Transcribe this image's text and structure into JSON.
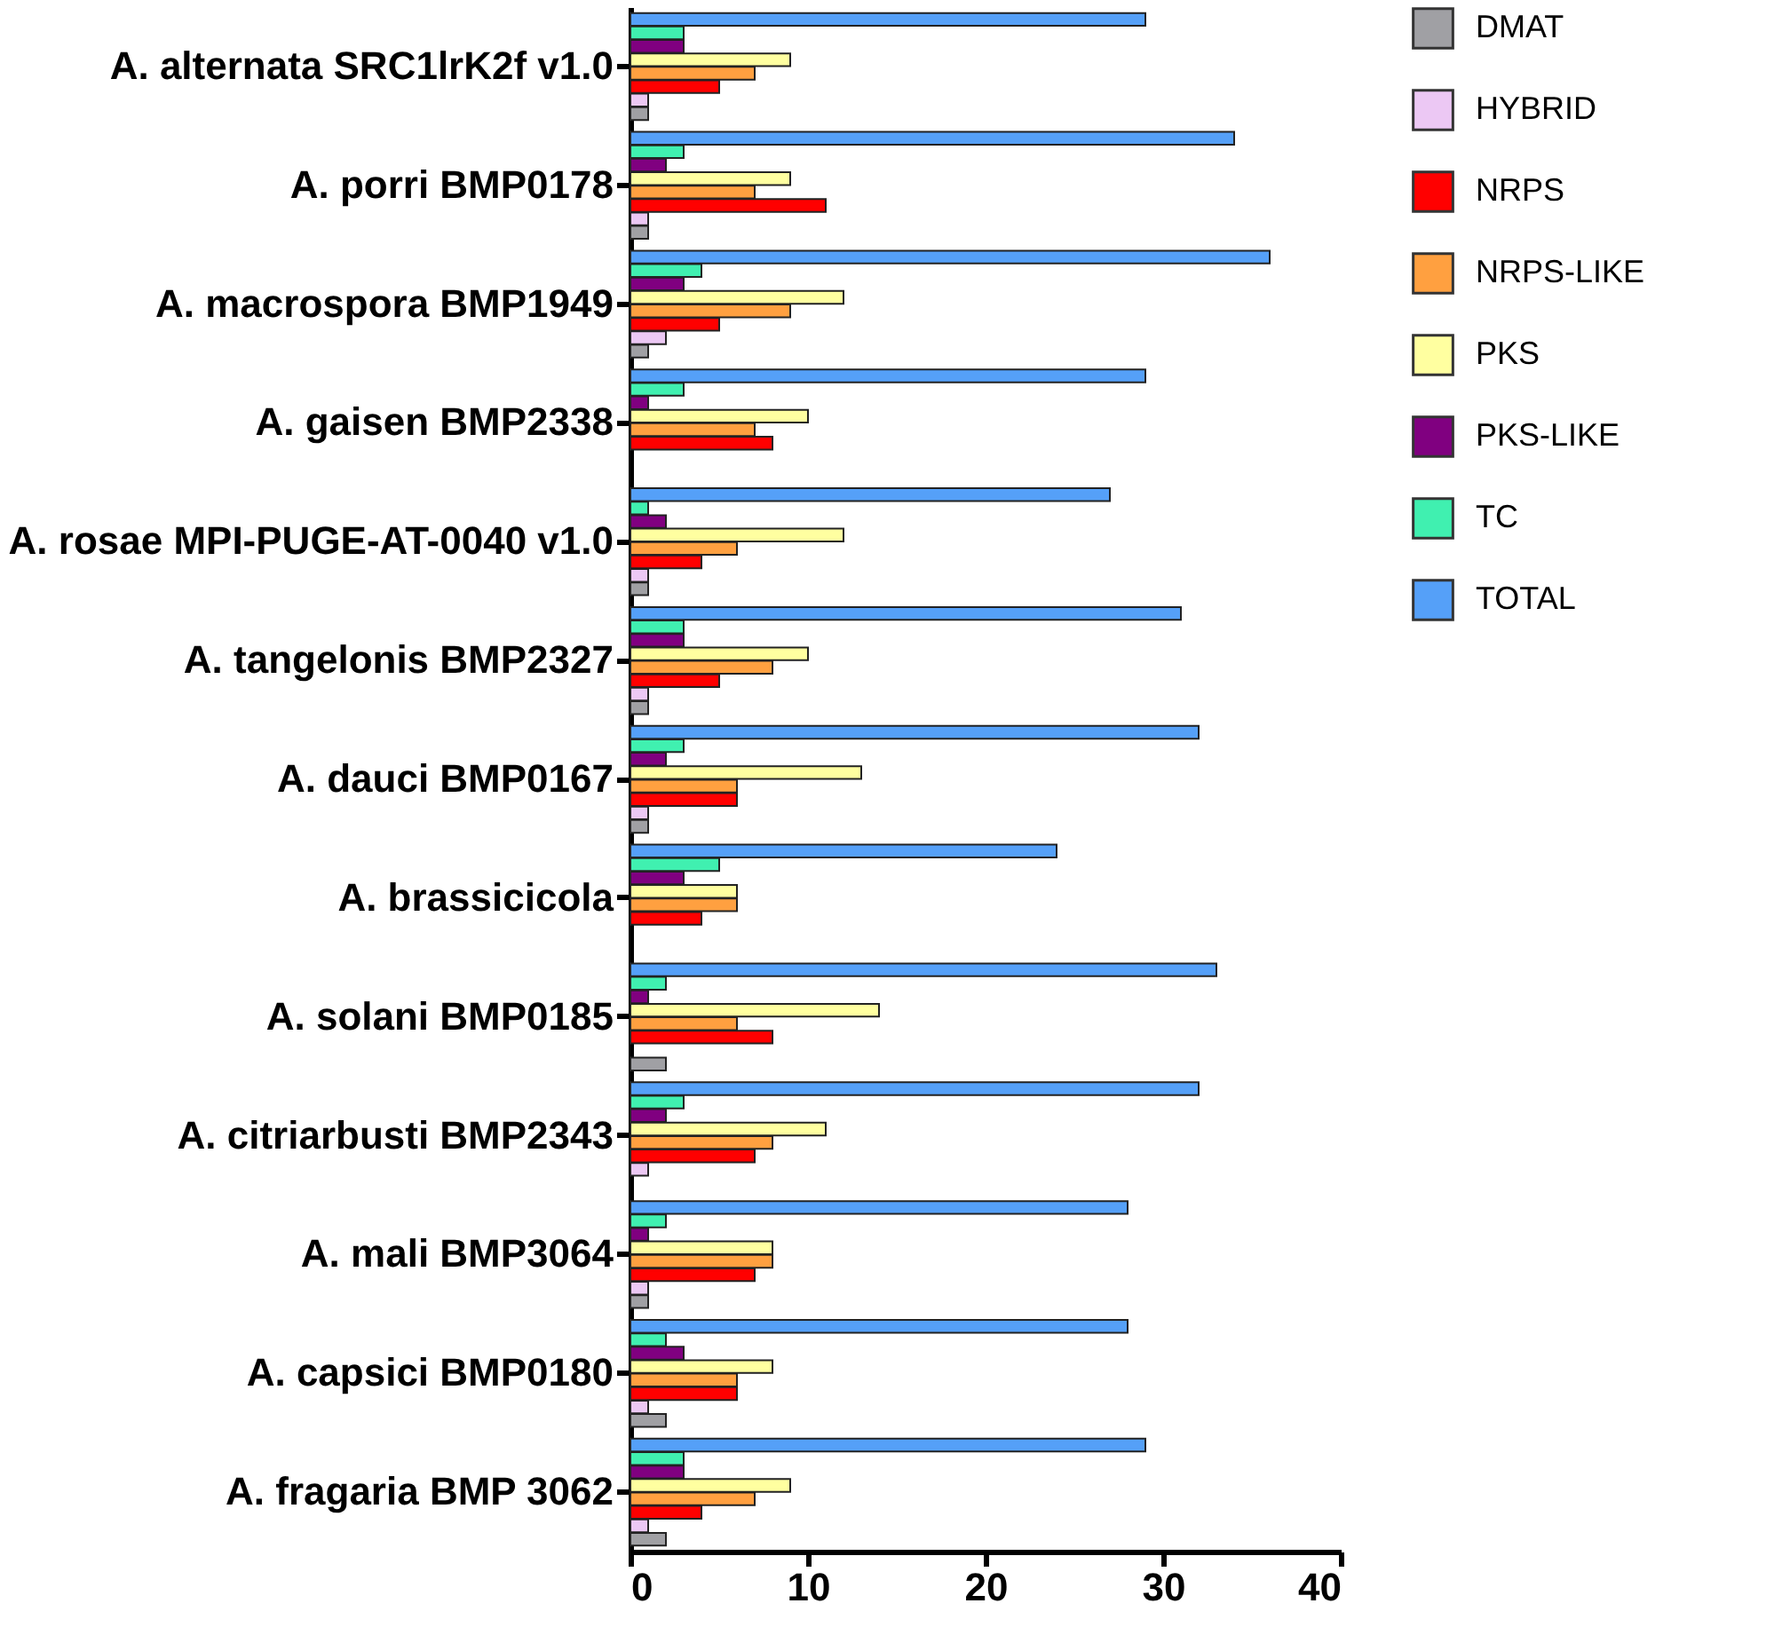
{
  "chart_data": {
    "type": "bar",
    "orientation": "horizontal",
    "categories": [
      "A. alternata SRC1lrK2f v1.0",
      "A. porri BMP0178",
      "A. macrospora BMP1949",
      "A. gaisen BMP2338",
      "A. rosae MPI-PUGE-AT-0040 v1.0",
      "A. tangelonis BMP2327",
      "A. dauci BMP0167",
      "A. brassicicola",
      "A. solani BMP0185",
      "A. citriarbusti BMP2343",
      "A. mali BMP3064",
      "A. capsici BMP0180",
      "A. fragaria BMP 3062"
    ],
    "series": [
      {
        "name": "DMAT",
        "color": "#a0a0a4",
        "values": [
          1,
          1,
          1,
          0,
          1,
          1,
          1,
          0,
          2,
          0,
          1,
          2,
          2
        ]
      },
      {
        "name": "HYBRID",
        "color": "#ecc8f4",
        "values": [
          1,
          1,
          2,
          0,
          1,
          1,
          1,
          0,
          0,
          1,
          1,
          1,
          1
        ]
      },
      {
        "name": "NRPS",
        "color": "#ff0000",
        "values": [
          5,
          11,
          5,
          8,
          4,
          5,
          6,
          4,
          8,
          7,
          7,
          6,
          4
        ]
      },
      {
        "name": "NRPS-LIKE",
        "color": "#ffa040",
        "values": [
          7,
          7,
          9,
          7,
          6,
          8,
          6,
          6,
          6,
          8,
          8,
          6,
          7
        ]
      },
      {
        "name": "PKS",
        "color": "#ffffa0",
        "values": [
          9,
          9,
          12,
          10,
          12,
          10,
          13,
          6,
          14,
          11,
          8,
          8,
          9
        ]
      },
      {
        "name": "PKS-LIKE",
        "color": "#800080",
        "values": [
          3,
          2,
          3,
          1,
          2,
          3,
          2,
          3,
          1,
          2,
          1,
          3,
          3
        ]
      },
      {
        "name": "TC",
        "color": "#40f0b0",
        "values": [
          3,
          3,
          4,
          3,
          1,
          3,
          3,
          5,
          2,
          3,
          2,
          2,
          3
        ]
      },
      {
        "name": "TOTAL",
        "color": "#55a0f8",
        "values": [
          29,
          34,
          36,
          29,
          27,
          31,
          32,
          24,
          33,
          32,
          28,
          28,
          29
        ]
      }
    ],
    "xlim": [
      0,
      40
    ],
    "xticks": [
      0,
      10,
      20,
      30,
      40
    ],
    "grid": false,
    "legend": "top right"
  }
}
